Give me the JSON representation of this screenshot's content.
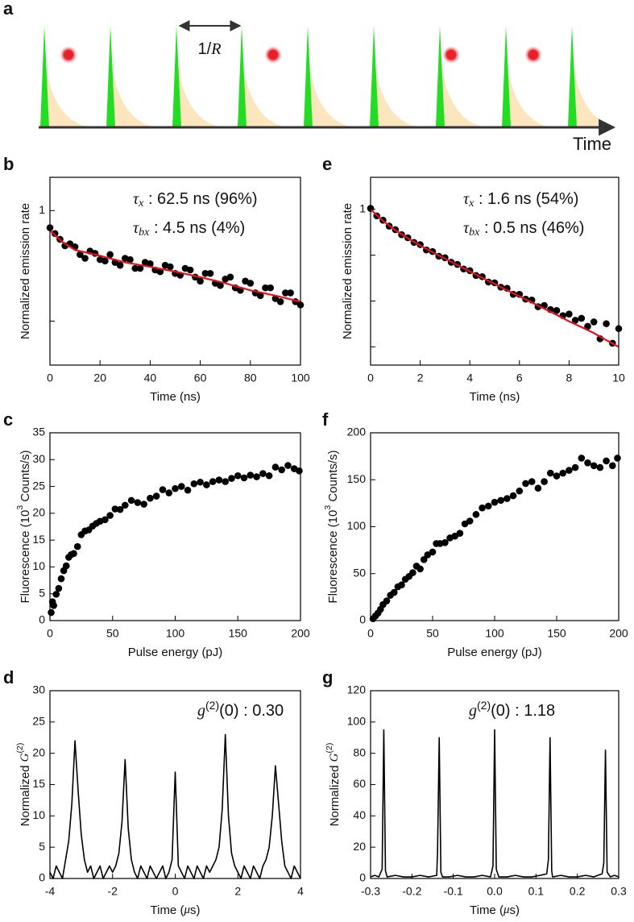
{
  "schematic": {
    "label": "a",
    "period_label": [
      {
        "text": "1/"
      },
      {
        "text": "R",
        "style": "italic"
      }
    ],
    "axis_label": "Time"
  },
  "chart_data": [
    {
      "type": "scatter",
      "label": "b",
      "log_y": true,
      "xlabel": "Time (ns)",
      "ylabel": "Normalized emission rate",
      "xlim": [
        0,
        100
      ],
      "ylim": [
        0.04,
        2
      ],
      "xticks": [
        0,
        20,
        40,
        60,
        80,
        100
      ],
      "yticks": [
        1
      ],
      "yticks_minor": [
        0.1
      ],
      "annotations": [
        [
          {
            "text": "τ",
            "style": "italic"
          },
          {
            "text": "x",
            "style": "sub"
          },
          {
            "text": " : 62.5 ns (96%)"
          }
        ],
        [
          {
            "text": "τ",
            "style": "italic"
          },
          {
            "text": "bx",
            "style": "sub"
          },
          {
            "text": " : 4.5 ns (4%)"
          }
        ]
      ],
      "series": [
        {
          "mark": "point",
          "color": "#000000",
          "x": [
            0,
            2,
            4,
            6,
            8,
            10,
            12,
            14,
            16,
            18,
            20,
            22,
            24,
            26,
            28,
            30,
            32,
            34,
            36,
            38,
            40,
            42,
            44,
            46,
            48,
            50,
            52,
            54,
            56,
            58,
            60,
            62,
            64,
            66,
            68,
            70,
            72,
            74,
            76,
            78,
            80,
            82,
            84,
            86,
            88,
            90,
            92,
            94,
            96,
            98,
            100
          ],
          "values": [
            0.7,
            0.62,
            0.55,
            0.48,
            0.5,
            0.47,
            0.4,
            0.37,
            0.43,
            0.41,
            0.36,
            0.35,
            0.4,
            0.34,
            0.32,
            0.37,
            0.36,
            0.3,
            0.3,
            0.34,
            0.33,
            0.29,
            0.28,
            0.32,
            0.31,
            0.27,
            0.26,
            0.3,
            0.29,
            0.25,
            0.23,
            0.27,
            0.27,
            0.22,
            0.21,
            0.24,
            0.25,
            0.2,
            0.19,
            0.23,
            0.22,
            0.18,
            0.17,
            0.2,
            0.2,
            0.16,
            0.15,
            0.18,
            0.18,
            0.15,
            0.14
          ]
        },
        {
          "mark": "line",
          "color": "#e8101a",
          "x": [
            0,
            5,
            10,
            20,
            30,
            40,
            50,
            60,
            70,
            80,
            90,
            100
          ],
          "values": [
            0.66,
            0.52,
            0.44,
            0.39,
            0.34,
            0.31,
            0.28,
            0.25,
            0.22,
            0.19,
            0.17,
            0.15
          ]
        }
      ]
    },
    {
      "type": "scatter",
      "label": "e",
      "log_y": true,
      "xlabel": "Time (ns)",
      "ylabel": "Normalized emission rate",
      "xlim": [
        0,
        10
      ],
      "ylim": [
        0.0004,
        5
      ],
      "xticks": [
        0,
        2,
        4,
        6,
        8,
        10
      ],
      "yticks": [
        1
      ],
      "yticks_minor": [
        0.1,
        0.01,
        0.001
      ],
      "annotations": [
        [
          {
            "text": "τ",
            "style": "italic"
          },
          {
            "text": "x",
            "style": "sub"
          },
          {
            "text": " : 1.6 ns (54%)"
          }
        ],
        [
          {
            "text": "τ",
            "style": "italic"
          },
          {
            "text": "bx",
            "style": "sub"
          },
          {
            "text": " : 0.5 ns (46%)"
          }
        ]
      ],
      "series": [
        {
          "mark": "point",
          "color": "#000000",
          "x": [
            0,
            0.25,
            0.5,
            0.75,
            1,
            1.25,
            1.5,
            1.75,
            2,
            2.25,
            2.5,
            2.75,
            3,
            3.25,
            3.5,
            3.75,
            4,
            4.25,
            4.5,
            4.75,
            5,
            5.25,
            5.5,
            5.75,
            6,
            6.25,
            6.5,
            6.75,
            7,
            7.25,
            7.5,
            7.75,
            8,
            8.25,
            8.5,
            8.75,
            9,
            9.25,
            9.5,
            9.75,
            10
          ],
          "values": [
            1.05,
            0.72,
            0.58,
            0.43,
            0.36,
            0.28,
            0.24,
            0.19,
            0.17,
            0.13,
            0.12,
            0.095,
            0.088,
            0.07,
            0.063,
            0.05,
            0.046,
            0.036,
            0.034,
            0.026,
            0.025,
            0.02,
            0.019,
            0.014,
            0.014,
            0.011,
            0.0105,
            0.0075,
            0.008,
            0.0065,
            0.0062,
            0.0048,
            0.0052,
            0.0038,
            0.0042,
            0.0028,
            0.0035,
            0.0015,
            0.0032,
            0.0012,
            0.0025
          ]
        },
        {
          "mark": "line",
          "color": "#e8101a",
          "x": [
            0,
            0.5,
            1,
            1.5,
            2,
            2.5,
            3,
            3.5,
            4,
            4.5,
            5,
            5.5,
            6,
            6.5,
            7,
            7.5,
            8,
            8.5,
            9,
            9.5,
            10
          ],
          "values": [
            1,
            0.56,
            0.351,
            0.235,
            0.163,
            0.116,
            0.084,
            0.061,
            0.0443,
            0.032,
            0.0237,
            0.0173,
            0.0127,
            0.0093,
            0.0068,
            0.005,
            0.0036,
            0.0027,
            0.002,
            0.0014,
            0.001
          ]
        }
      ]
    },
    {
      "type": "scatter",
      "label": "c",
      "xlabel": "Pulse energy (pJ)",
      "ylabel": [
        {
          "text": "Fluorescence (10"
        },
        {
          "text": "3",
          "style": "sup"
        },
        {
          "text": " Counts/s)"
        }
      ],
      "xlim": [
        0,
        200
      ],
      "ylim": [
        0,
        35
      ],
      "xticks": [
        0,
        50,
        100,
        150,
        200
      ],
      "yticks": [
        0,
        5,
        10,
        15,
        20,
        25,
        30,
        35
      ],
      "series": [
        {
          "mark": "point",
          "color": "#000000",
          "x": [
            1,
            2,
            3,
            5,
            7,
            9,
            11,
            13,
            15,
            17,
            19,
            22,
            25,
            28,
            31,
            34,
            37,
            40,
            44,
            48,
            52,
            56,
            60,
            65,
            70,
            75,
            80,
            85,
            90,
            95,
            100,
            105,
            110,
            115,
            120,
            125,
            130,
            135,
            140,
            145,
            150,
            155,
            160,
            165,
            170,
            175,
            180,
            185,
            190,
            195,
            199
          ],
          "values": [
            1.5,
            3.5,
            2.8,
            4.9,
            6.0,
            7.8,
            9.3,
            10.2,
            11.8,
            12.3,
            12.5,
            13.8,
            16.0,
            16.7,
            16.9,
            17.6,
            18.1,
            18.5,
            18.8,
            19.6,
            20.8,
            20.7,
            21.5,
            22.4,
            22.0,
            21.7,
            22.8,
            23.2,
            24.4,
            23.8,
            24.6,
            25.0,
            24.3,
            25.5,
            25.8,
            25.3,
            25.9,
            26.2,
            25.9,
            26.5,
            27.0,
            26.6,
            27.1,
            26.8,
            27.4,
            27.0,
            28.6,
            28.1,
            28.9,
            28.3,
            27.9
          ]
        }
      ]
    },
    {
      "type": "scatter",
      "label": "f",
      "xlabel": "Pulse energy (pJ)",
      "ylabel": [
        {
          "text": "Fluorescence (10"
        },
        {
          "text": "3",
          "style": "sup"
        },
        {
          "text": " Counts/s)"
        }
      ],
      "xlim": [
        0,
        200
      ],
      "ylim": [
        0,
        200
      ],
      "xticks": [
        0,
        50,
        100,
        150,
        200
      ],
      "yticks": [
        0,
        50,
        100,
        150,
        200
      ],
      "series": [
        {
          "mark": "point",
          "color": "#000000",
          "x": [
            2,
            4,
            6,
            8,
            10,
            13,
            16,
            19,
            22,
            25,
            28,
            31,
            34,
            37,
            40,
            43,
            46,
            50,
            53,
            56,
            60,
            64,
            68,
            72,
            76,
            80,
            85,
            90,
            95,
            100,
            105,
            110,
            115,
            120,
            125,
            130,
            135,
            140,
            145,
            150,
            155,
            160,
            165,
            170,
            175,
            180,
            185,
            190,
            195,
            199
          ],
          "values": [
            2,
            5,
            8,
            12,
            17,
            21,
            27,
            30,
            36,
            38,
            44,
            47,
            51,
            58,
            55,
            65,
            70,
            73,
            82,
            82,
            83,
            88,
            90,
            93,
            103,
            106,
            113,
            120,
            122,
            126,
            128,
            130,
            133,
            138,
            146,
            148,
            141,
            148,
            157,
            154,
            157,
            160,
            163,
            173,
            168,
            165,
            163,
            170,
            165,
            173
          ]
        }
      ]
    },
    {
      "type": "line",
      "label": "d",
      "xlabel": [
        {
          "text": "Time ("
        },
        {
          "text": "μ",
          "style": "italic"
        },
        {
          "text": "s)"
        }
      ],
      "ylabel": [
        {
          "text": "Normalized "
        },
        {
          "text": "G",
          "style": "italic"
        },
        {
          "text": "(2)",
          "style": "sup"
        }
      ],
      "xlim": [
        -4,
        4
      ],
      "ylim": [
        0,
        30
      ],
      "xticks": [
        -4,
        -2,
        0,
        2,
        4
      ],
      "yticks": [
        0,
        5,
        10,
        15,
        20,
        25,
        30
      ],
      "annotations": [
        [
          {
            "text": "g",
            "style": "italic"
          },
          {
            "text": "(2)",
            "style": "sup"
          },
          {
            "text": "(0) : 0.30"
          }
        ]
      ],
      "series": [
        {
          "mark": "line",
          "color": "#000000",
          "x": [
            -4,
            -3.9,
            -3.8,
            -3.7,
            -3.6,
            -3.5,
            -3.4,
            -3.3,
            -3.2,
            -3.1,
            -3,
            -2.9,
            -2.8,
            -2.7,
            -2.6,
            -2.5,
            -2.4,
            -2.3,
            -2.2,
            -2.1,
            -2,
            -1.9,
            -1.8,
            -1.7,
            -1.6,
            -1.5,
            -1.4,
            -1.3,
            -1.2,
            -1.1,
            -1,
            -0.9,
            -0.8,
            -0.7,
            -0.6,
            -0.5,
            -0.4,
            -0.3,
            -0.2,
            -0.1,
            0,
            0.1,
            0.2,
            0.3,
            0.4,
            0.5,
            0.6,
            0.7,
            0.8,
            0.9,
            1,
            1.1,
            1.2,
            1.3,
            1.4,
            1.5,
            1.6,
            1.7,
            1.8,
            1.9,
            2,
            2.1,
            2.2,
            2.3,
            2.4,
            2.5,
            2.6,
            2.7,
            2.8,
            2.9,
            3,
            3.1,
            3.2,
            3.3,
            3.4,
            3.5,
            3.6,
            3.7,
            3.8,
            3.9,
            4
          ],
          "values": [
            1,
            0,
            2,
            1,
            0,
            3,
            6,
            12,
            22,
            14,
            7,
            3,
            1,
            2,
            0,
            1,
            2,
            0,
            1,
            2,
            1,
            2,
            4,
            9,
            19,
            8,
            3,
            1,
            0,
            2,
            1,
            0,
            2,
            1,
            0,
            1,
            2,
            0,
            1,
            3,
            17,
            2,
            1,
            0,
            2,
            1,
            0,
            2,
            1,
            0,
            2,
            1,
            2,
            3,
            5,
            11,
            23,
            10,
            4,
            2,
            1,
            0,
            2,
            1,
            0,
            2,
            1,
            0,
            2,
            3,
            5,
            10,
            18,
            12,
            6,
            2,
            1,
            0,
            2,
            1,
            0
          ]
        }
      ]
    },
    {
      "type": "line",
      "label": "g",
      "xlabel": [
        {
          "text": "Time ("
        },
        {
          "text": "μ",
          "style": "italic"
        },
        {
          "text": "s)"
        }
      ],
      "ylabel": [
        {
          "text": "Normalized "
        },
        {
          "text": "G",
          "style": "italic"
        },
        {
          "text": "(2)",
          "style": "sup"
        }
      ],
      "xlim": [
        -0.3,
        0.3
      ],
      "ylim": [
        0,
        120
      ],
      "xticks": [
        -0.3,
        -0.2,
        -0.1,
        {
          "value": 0,
          "label": "0.0"
        },
        0.1,
        0.2,
        0.3
      ],
      "yticks": [
        0,
        20,
        40,
        60,
        80,
        100,
        120
      ],
      "annotations": [
        [
          {
            "text": "g",
            "style": "italic"
          },
          {
            "text": "(2)",
            "style": "sup"
          },
          {
            "text": "(0) : 1.18"
          }
        ]
      ],
      "series": [
        {
          "mark": "line",
          "color": "#000000",
          "x": [
            -0.3,
            -0.29,
            -0.28,
            -0.272,
            -0.268,
            -0.264,
            -0.26,
            -0.24,
            -0.22,
            -0.2,
            -0.18,
            -0.16,
            -0.14,
            -0.138,
            -0.134,
            -0.13,
            -0.126,
            -0.11,
            -0.09,
            -0.07,
            -0.05,
            -0.03,
            -0.01,
            -0.004,
            0,
            0.004,
            0.01,
            0.03,
            0.05,
            0.07,
            0.09,
            0.11,
            0.126,
            0.13,
            0.134,
            0.138,
            0.14,
            0.16,
            0.18,
            0.2,
            0.22,
            0.24,
            0.26,
            0.264,
            0.268,
            0.272,
            0.28,
            0.29,
            0.3
          ],
          "values": [
            1,
            2,
            1,
            6,
            95,
            5,
            1,
            2,
            1,
            1,
            2,
            1,
            2,
            18,
            90,
            4,
            1,
            1,
            2,
            1,
            1,
            2,
            1,
            8,
            95,
            6,
            1,
            1,
            2,
            1,
            1,
            2,
            3,
            12,
            90,
            5,
            1,
            2,
            1,
            1,
            2,
            1,
            3,
            10,
            82,
            4,
            1,
            2,
            1
          ]
        }
      ]
    }
  ]
}
